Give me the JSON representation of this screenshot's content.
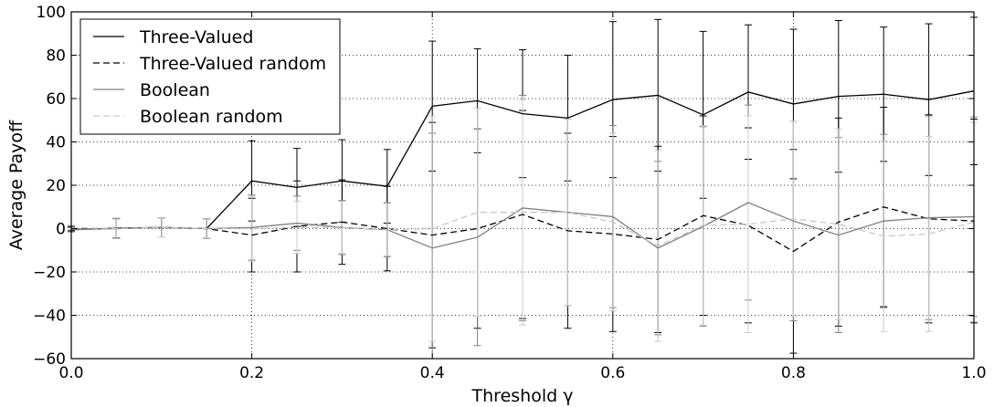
{
  "chart_data": {
    "type": "line",
    "xlabel": "Threshold γ",
    "ylabel": "Average Payoff",
    "xlim": [
      0.0,
      1.0
    ],
    "ylim": [
      -60,
      100
    ],
    "xticks": [
      0.0,
      0.2,
      0.4,
      0.6,
      0.8,
      1.0
    ],
    "xtick_labels": [
      "0.0",
      "0.2",
      "0.4",
      "0.6",
      "0.8",
      "1.0"
    ],
    "yticks": [
      -60,
      -40,
      -20,
      0,
      20,
      40,
      60,
      80,
      100
    ],
    "ytick_labels": [
      "−60",
      "−40",
      "−20",
      "0",
      "20",
      "40",
      "60",
      "80",
      "100"
    ],
    "grid": true,
    "legend_position": "top-left",
    "x": [
      0.0,
      0.05,
      0.1,
      0.15,
      0.2,
      0.25,
      0.3,
      0.35,
      0.4,
      0.45,
      0.5,
      0.55,
      0.6,
      0.65,
      0.7,
      0.75,
      0.8,
      0.85,
      0.9,
      0.95,
      1.0
    ],
    "series": [
      {
        "name": "Three-Valued",
        "color": "#000000",
        "dash": "solid",
        "values": [
          -0.5,
          0.2,
          0.5,
          0.0,
          22,
          19,
          22,
          19.5,
          56.5,
          59,
          53,
          51,
          59.5,
          61.5,
          52.5,
          63,
          57.5,
          61,
          62,
          59.5,
          63.5
        ],
        "errors": [
          1,
          4.5,
          4.5,
          4.5,
          18.5,
          18,
          19,
          17,
          30,
          24,
          29.5,
          29,
          36,
          35,
          38.5,
          31,
          34.5,
          35,
          31,
          35,
          34
        ]
      },
      {
        "name": "Three-Valued random",
        "color": "#000000",
        "dash": "dashed",
        "values": [
          0.0,
          0.0,
          0.5,
          0.0,
          -3,
          1,
          3,
          0,
          -3,
          0,
          6.5,
          -1,
          -2.5,
          -5,
          6,
          1.5,
          -10.5,
          3,
          10,
          4.5,
          3.5
        ],
        "errors": [
          1,
          4.5,
          4.5,
          4.5,
          17,
          21,
          19.5,
          19.5,
          52,
          46,
          48,
          45,
          45,
          43,
          46,
          45,
          47,
          48,
          46,
          48,
          47
        ]
      },
      {
        "name": "Boolean",
        "color": "#808080",
        "dash": "solid",
        "values": [
          -0.5,
          0.0,
          0.5,
          0.0,
          0.5,
          2.5,
          0.5,
          -0.5,
          -9,
          -4,
          9.5,
          7.5,
          5.5,
          -9,
          1,
          12,
          3.5,
          -3,
          3.5,
          5,
          5.5
        ],
        "errors": [
          1,
          4.5,
          4.5,
          4.5,
          15,
          12.5,
          12.5,
          12.5,
          53,
          50,
          52,
          43,
          42,
          40,
          46,
          45,
          46,
          45,
          40,
          47,
          46
        ]
      },
      {
        "name": "Boolean random",
        "color": "#c8c8c8",
        "dash": "dashed",
        "values": [
          0.5,
          0.0,
          0.5,
          0.0,
          0.0,
          0.5,
          0.5,
          -0.5,
          0.0,
          7.5,
          7.5,
          7.5,
          3,
          -8,
          1.5,
          2,
          4.5,
          2,
          -3.5,
          -2.5,
          3
        ],
        "errors": [
          1,
          4.5,
          4.5,
          4.5,
          15,
          12,
          12,
          12,
          52,
          48,
          52,
          43,
          41,
          44,
          46,
          50,
          45,
          44,
          44,
          45,
          46
        ]
      }
    ]
  }
}
